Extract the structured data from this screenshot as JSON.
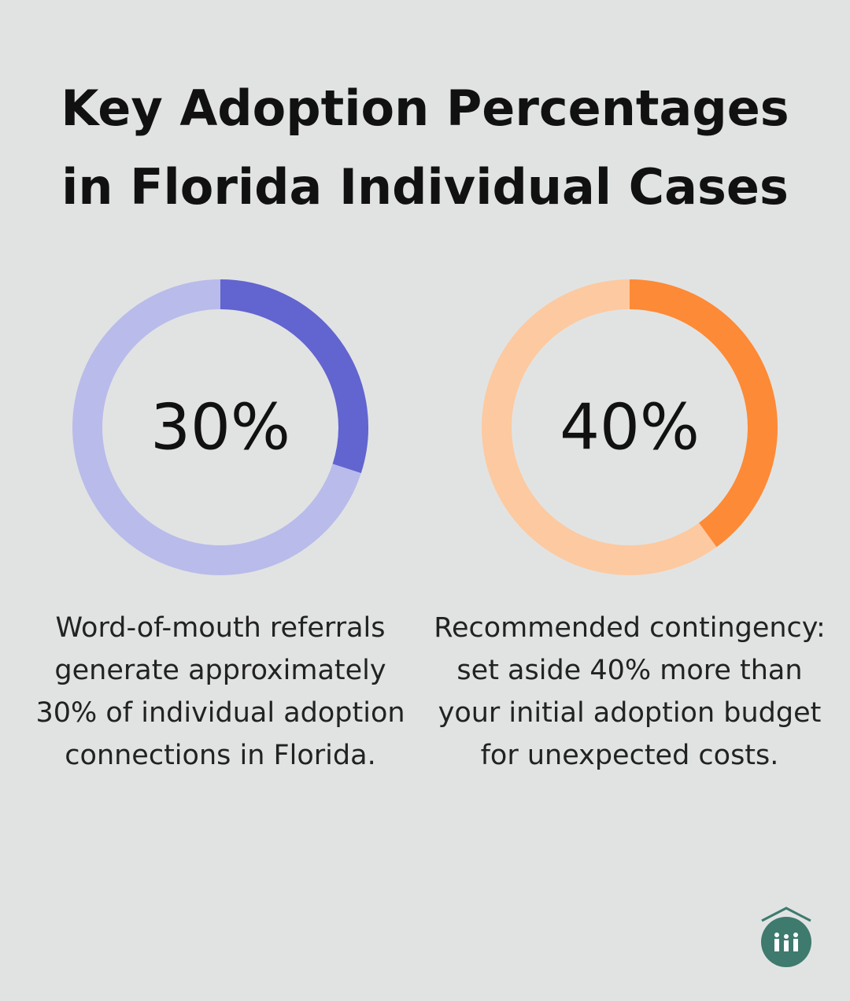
{
  "title": "Key Adoption Percentages in Florida Individual Cases",
  "chart_data": [
    {
      "type": "donut",
      "values": [
        30
      ],
      "value_labels": [
        "30%"
      ],
      "color": "#6264d0",
      "track_color": "#b9bbea",
      "caption": "Word-of-mouth referrals generate approximately 30% of individual adoption connections in Florida."
    },
    {
      "type": "donut",
      "values": [
        40
      ],
      "value_labels": [
        "40%"
      ],
      "color": "#fd8a36",
      "track_color": "#fdc9a0",
      "caption": "Recommended contingency: set aside 40% more than your initial adoption budget for unexpected costs."
    }
  ]
}
